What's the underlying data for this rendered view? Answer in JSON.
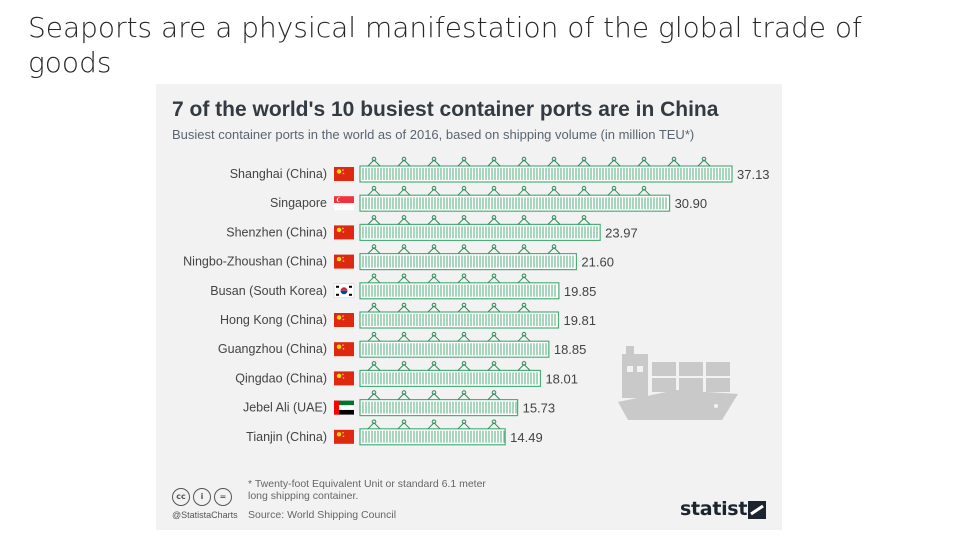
{
  "slide": {
    "title": "Seaports are a physical manifestation of the global trade of goods"
  },
  "infographic": {
    "title": "7 of the world's 10 busiest container ports are in China",
    "subtitle": "Busiest container ports in the world as of 2016, based on shipping volume (in million TEU*)",
    "footnote": "* Twenty-foot Equivalent Unit or standard 6.1 meter\n  long shipping container.",
    "source": "Source: World Shipping Council",
    "handle": "@StatistaCharts",
    "brand": "statista",
    "cc_icons": [
      "cc",
      "i",
      "="
    ],
    "icons": [
      "creative-commons-icon",
      "attribution-icon",
      "no-derivatives-icon",
      "cargo-ship-icon",
      "statista-logo-icon"
    ],
    "colors": {
      "bar": "#4caf7a",
      "bar_dark": "#2e8b57",
      "text": "#333a42",
      "ship": "#c9c9c9",
      "china_flag": "#de2910"
    }
  },
  "chart_data": {
    "type": "bar",
    "orientation": "horizontal",
    "categories": [
      "Shanghai (China)",
      "Singapore",
      "Shenzhen (China)",
      "Ningbo-Zhoushan (China)",
      "Busan (South Korea)",
      "Hong Kong (China)",
      "Guangzhou (China)",
      "Qingdao (China)",
      "Jebel Ali (UAE)",
      "Tianjin (China)"
    ],
    "values": [
      37.13,
      30.9,
      23.97,
      21.6,
      19.85,
      19.81,
      18.85,
      18.01,
      15.73,
      14.49
    ],
    "value_labels": [
      "37.13",
      "30.90",
      "23.97",
      "21.60",
      "19.85",
      "19.81",
      "18.85",
      "18.01",
      "15.73",
      "14.49"
    ],
    "flags": [
      "china",
      "singapore",
      "china",
      "china",
      "south-korea",
      "china",
      "china",
      "china",
      "uae",
      "china"
    ],
    "title": "7 of the world's 10 busiest container ports are in China",
    "xlabel": "",
    "ylabel": "",
    "grid": false,
    "legend": "none"
  }
}
